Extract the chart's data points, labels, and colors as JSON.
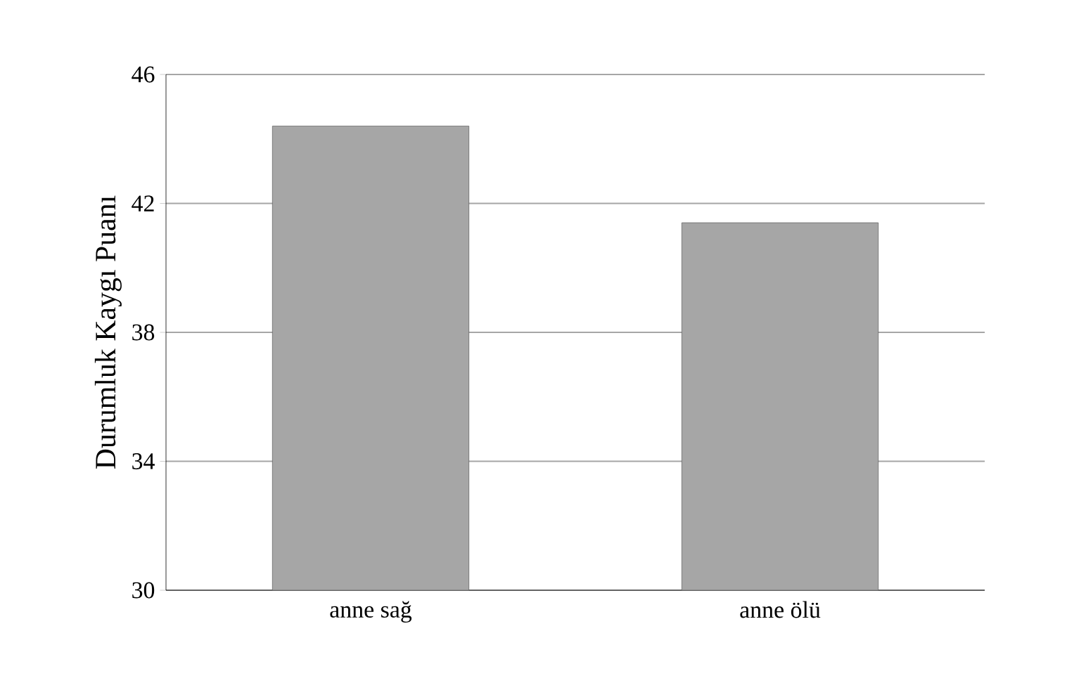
{
  "chart_data": {
    "type": "bar",
    "ylabel": "Durumluk Kaygı Puanı",
    "categories": [
      "anne sağ",
      "anne ölü"
    ],
    "values": [
      44.4,
      41.4
    ],
    "color": "#a6a6a6",
    "ylim": [
      30,
      46
    ],
    "yticks": [
      30,
      34,
      38,
      42,
      46
    ],
    "grid": "y"
  }
}
